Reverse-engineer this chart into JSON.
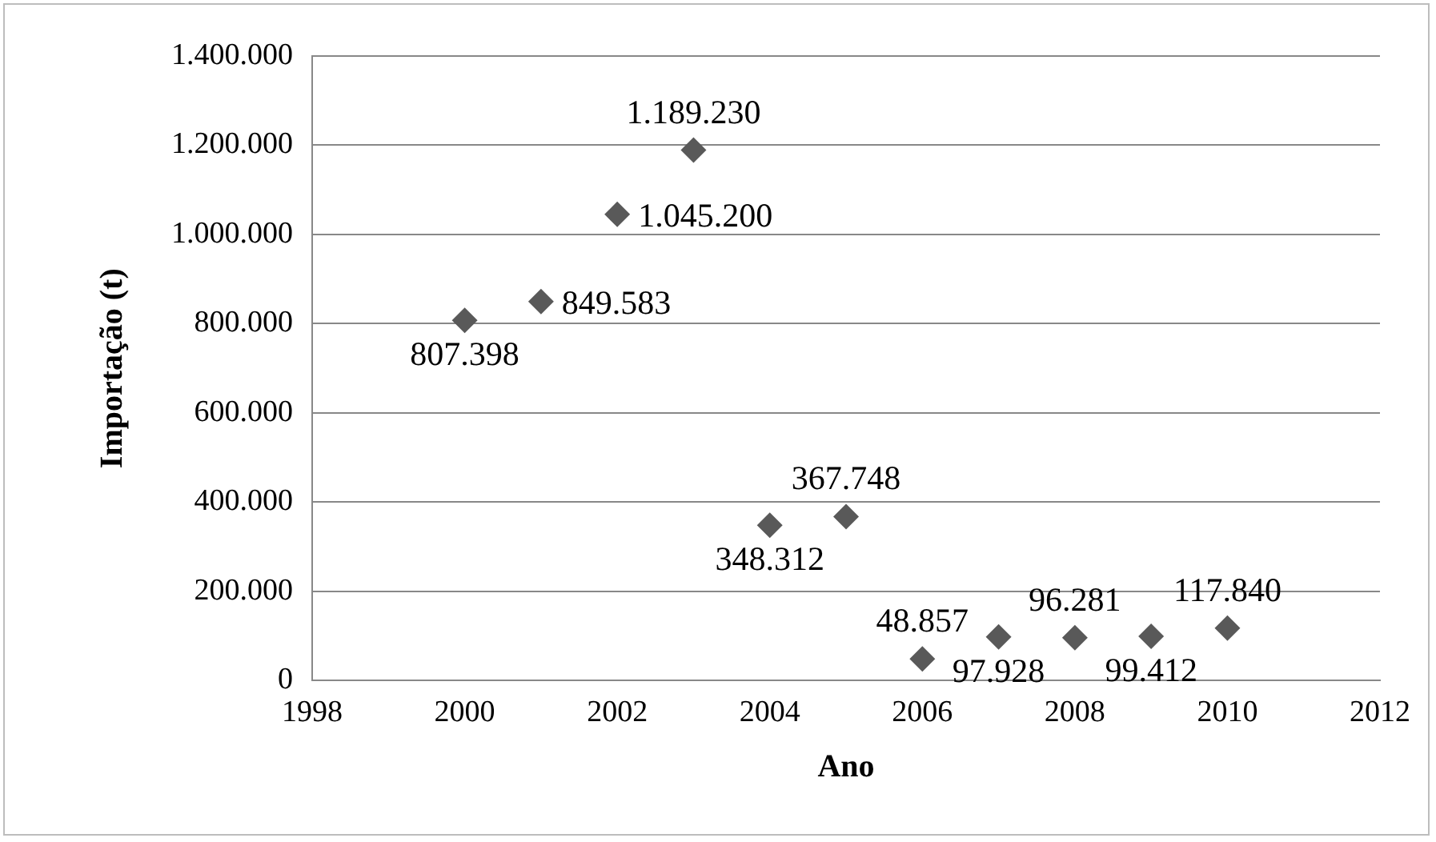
{
  "chart_data": {
    "type": "scatter",
    "xlabel": "Ano",
    "ylabel": "Importação (t)",
    "x": [
      2000,
      2001,
      2002,
      2003,
      2004,
      2005,
      2006,
      2007,
      2008,
      2009,
      2010
    ],
    "marker": "diamond",
    "series": [
      {
        "color": "#595959",
        "values": [
          807398,
          849583,
          1045200,
          1189230,
          348312,
          367748,
          48857,
          97928,
          96281,
          99412,
          117840
        ],
        "value_labels": [
          "807.398",
          "849.583",
          "1.045.200",
          "1.189.230",
          "348.312",
          "367.748",
          "48.857",
          "97.928",
          "96.281",
          "99.412",
          "117.840"
        ]
      }
    ],
    "xlim": [
      1998,
      2012
    ],
    "xticks": [
      1998,
      2000,
      2002,
      2004,
      2006,
      2008,
      2010,
      2012
    ],
    "ylim": [
      0,
      1400000
    ],
    "yticks": [
      0,
      {
        "value": 200000,
        "label": "200.000"
      },
      {
        "value": 400000,
        "label": "400.000"
      },
      {
        "value": 600000,
        "label": "600.000"
      },
      {
        "value": 800000,
        "label": "800.000"
      },
      {
        "value": 1000000,
        "label": "1.000.000"
      },
      {
        "value": 1200000,
        "label": "1.200.000"
      },
      {
        "value": 1400000,
        "label": "1.400.000"
      }
    ],
    "grid": "y",
    "legend": false
  }
}
